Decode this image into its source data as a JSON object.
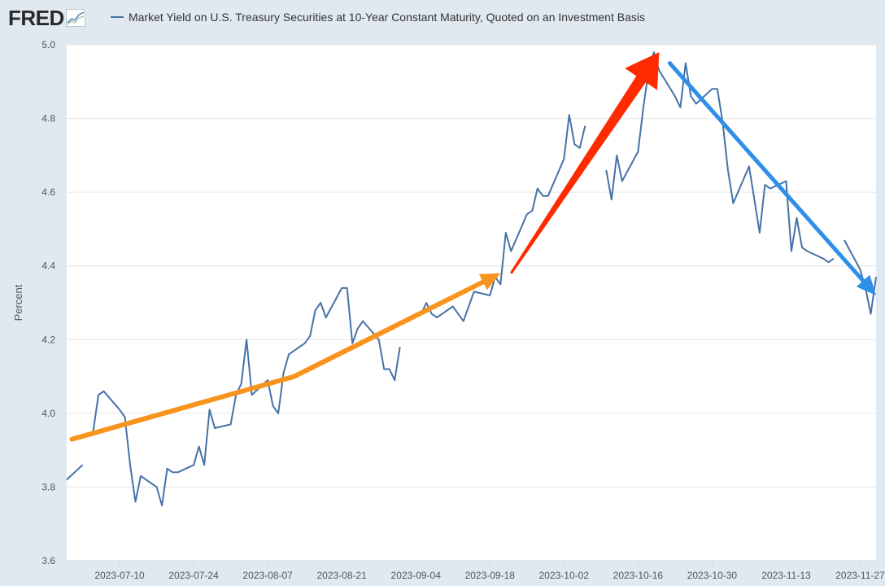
{
  "header": {
    "logo_text": "FRED",
    "legend_label": "Market Yield on U.S. Treasury Securities at 10-Year Constant Maturity, Quoted on an Investment Basis"
  },
  "colors": {
    "series": "#4572a7",
    "arrow_orange": "#f7941d",
    "arrow_red": "#ff2a00",
    "arrow_blue": "#2f8fe8",
    "grid": "#e6e6e6",
    "plot_bg": "#ffffff"
  },
  "chart_data": {
    "type": "line",
    "title": "",
    "xlabel": "",
    "ylabel": "Percent",
    "ylim": [
      3.6,
      5.0
    ],
    "xlim": [
      "2023-06-30",
      "2023-11-30"
    ],
    "grid": true,
    "legend": "top-left",
    "y_ticks": [
      "3.6",
      "3.8",
      "4.0",
      "4.2",
      "4.4",
      "4.6",
      "4.8",
      "5.0"
    ],
    "x_ticks": [
      "2023-07-10",
      "2023-07-24",
      "2023-08-07",
      "2023-08-21",
      "2023-09-04",
      "2023-09-18",
      "2023-10-02",
      "2023-10-16",
      "2023-10-30",
      "2023-11-13",
      "2023-11-27"
    ],
    "series": [
      {
        "name": "Market Yield on U.S. Treasury Securities at 10-Year Constant Maturity, Quoted on an Investment Basis",
        "points": [
          [
            "2023-06-30",
            3.82
          ],
          [
            "2023-07-03",
            3.86
          ],
          [
            "2023-07-04",
            null
          ],
          [
            "2023-07-05",
            3.95
          ],
          [
            "2023-07-06",
            4.05
          ],
          [
            "2023-07-07",
            4.06
          ],
          [
            "2023-07-10",
            4.01
          ],
          [
            "2023-07-11",
            3.99
          ],
          [
            "2023-07-12",
            3.86
          ],
          [
            "2023-07-13",
            3.76
          ],
          [
            "2023-07-14",
            3.83
          ],
          [
            "2023-07-17",
            3.8
          ],
          [
            "2023-07-18",
            3.75
          ],
          [
            "2023-07-19",
            3.85
          ],
          [
            "2023-07-20",
            3.84
          ],
          [
            "2023-07-21",
            3.84
          ],
          [
            "2023-07-24",
            3.86
          ],
          [
            "2023-07-25",
            3.91
          ],
          [
            "2023-07-26",
            3.86
          ],
          [
            "2023-07-27",
            4.01
          ],
          [
            "2023-07-28",
            3.96
          ],
          [
            "2023-07-31",
            3.97
          ],
          [
            "2023-08-01",
            4.05
          ],
          [
            "2023-08-02",
            4.08
          ],
          [
            "2023-08-03",
            4.2
          ],
          [
            "2023-08-04",
            4.05
          ],
          [
            "2023-08-07",
            4.09
          ],
          [
            "2023-08-08",
            4.02
          ],
          [
            "2023-08-09",
            4.0
          ],
          [
            "2023-08-10",
            4.11
          ],
          [
            "2023-08-11",
            4.16
          ],
          [
            "2023-08-14",
            4.19
          ],
          [
            "2023-08-15",
            4.21
          ],
          [
            "2023-08-16",
            4.28
          ],
          [
            "2023-08-17",
            4.3
          ],
          [
            "2023-08-18",
            4.26
          ],
          [
            "2023-08-21",
            4.34
          ],
          [
            "2023-08-22",
            4.34
          ],
          [
            "2023-08-23",
            4.19
          ],
          [
            "2023-08-24",
            4.23
          ],
          [
            "2023-08-25",
            4.25
          ],
          [
            "2023-08-28",
            4.2
          ],
          [
            "2023-08-29",
            4.12
          ],
          [
            "2023-08-30",
            4.12
          ],
          [
            "2023-08-31",
            4.09
          ],
          [
            "2023-09-01",
            4.18
          ],
          [
            "2023-09-04",
            null
          ],
          [
            "2023-09-05",
            4.27
          ],
          [
            "2023-09-06",
            4.3
          ],
          [
            "2023-09-07",
            4.27
          ],
          [
            "2023-09-08",
            4.26
          ],
          [
            "2023-09-11",
            4.29
          ],
          [
            "2023-09-12",
            4.27
          ],
          [
            "2023-09-13",
            4.25
          ],
          [
            "2023-09-14",
            4.29
          ],
          [
            "2023-09-15",
            4.33
          ],
          [
            "2023-09-18",
            4.32
          ],
          [
            "2023-09-19",
            4.37
          ],
          [
            "2023-09-20",
            4.35
          ],
          [
            "2023-09-21",
            4.49
          ],
          [
            "2023-09-22",
            4.44
          ],
          [
            "2023-09-25",
            4.54
          ],
          [
            "2023-09-26",
            4.55
          ],
          [
            "2023-09-27",
            4.61
          ],
          [
            "2023-09-28",
            4.59
          ],
          [
            "2023-09-29",
            4.59
          ],
          [
            "2023-10-02",
            4.69
          ],
          [
            "2023-10-03",
            4.81
          ],
          [
            "2023-10-04",
            4.73
          ],
          [
            "2023-10-05",
            4.72
          ],
          [
            "2023-10-06",
            4.78
          ],
          [
            "2023-10-09",
            null
          ],
          [
            "2023-10-10",
            4.66
          ],
          [
            "2023-10-11",
            4.58
          ],
          [
            "2023-10-12",
            4.7
          ],
          [
            "2023-10-13",
            4.63
          ],
          [
            "2023-10-16",
            4.71
          ],
          [
            "2023-10-17",
            4.83
          ],
          [
            "2023-10-18",
            4.93
          ],
          [
            "2023-10-19",
            4.98
          ],
          [
            "2023-10-20",
            4.93
          ],
          [
            "2023-10-23",
            4.86
          ],
          [
            "2023-10-24",
            4.83
          ],
          [
            "2023-10-25",
            4.95
          ],
          [
            "2023-10-26",
            4.86
          ],
          [
            "2023-10-27",
            4.84
          ],
          [
            "2023-10-30",
            4.88
          ],
          [
            "2023-10-31",
            4.88
          ],
          [
            "2023-11-01",
            4.79
          ],
          [
            "2023-11-02",
            4.66
          ],
          [
            "2023-11-03",
            4.57
          ],
          [
            "2023-11-06",
            4.67
          ],
          [
            "2023-11-07",
            4.58
          ],
          [
            "2023-11-08",
            4.49
          ],
          [
            "2023-11-09",
            4.62
          ],
          [
            "2023-11-10",
            4.61
          ],
          [
            "2023-11-13",
            4.63
          ],
          [
            "2023-11-14",
            4.44
          ],
          [
            "2023-11-15",
            4.53
          ],
          [
            "2023-11-16",
            4.45
          ],
          [
            "2023-11-17",
            4.44
          ],
          [
            "2023-11-20",
            4.42
          ],
          [
            "2023-11-21",
            4.41
          ],
          [
            "2023-11-22",
            4.42
          ],
          [
            "2023-11-23",
            null
          ],
          [
            "2023-11-24",
            4.47
          ],
          [
            "2023-11-27",
            4.39
          ],
          [
            "2023-11-28",
            4.34
          ],
          [
            "2023-11-29",
            4.27
          ],
          [
            "2023-11-30",
            4.37
          ]
        ]
      }
    ],
    "annotations": [
      {
        "type": "arrow",
        "color": "orange",
        "from": [
          "2023-07-01",
          3.93
        ],
        "via": [
          "2023-08-12",
          4.1
        ],
        "to": [
          "2023-09-20",
          4.38
        ]
      },
      {
        "type": "arrow",
        "color": "red",
        "from": [
          "2023-09-22",
          4.38
        ],
        "to": [
          "2023-10-20",
          4.98
        ]
      },
      {
        "type": "arrow",
        "color": "blue",
        "from": [
          "2023-10-22",
          4.95
        ],
        "to": [
          "2023-11-30",
          4.32
        ]
      }
    ]
  }
}
